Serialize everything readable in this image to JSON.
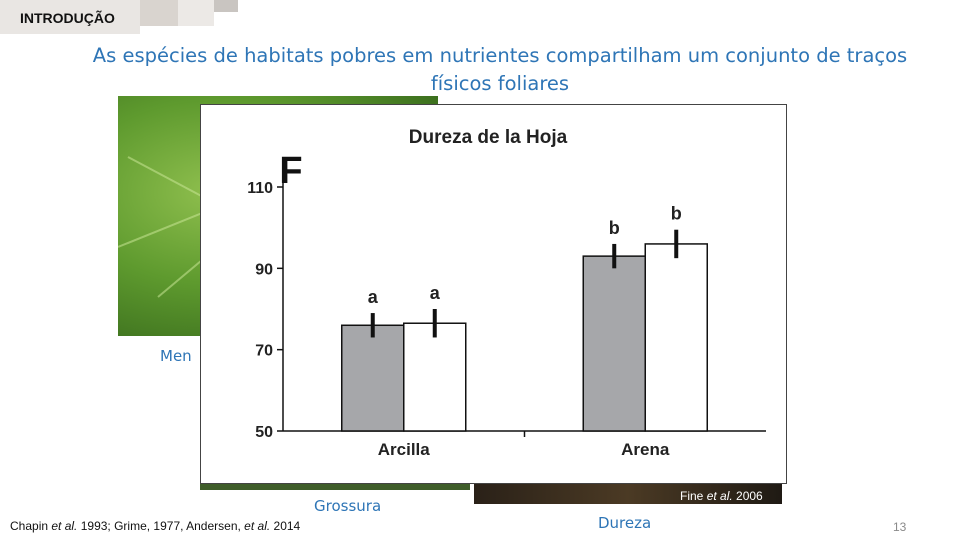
{
  "header": {
    "section_tag": "INTRODUÇÃO"
  },
  "slide": {
    "title": "As espécies de habitats pobres em nutrientes compartilham um conjunto de traços físicos foliares",
    "labels": {
      "left": "Men",
      "middle": "Grossura",
      "right": "Dureza"
    },
    "photo_credit": {
      "author": "Fine ",
      "etal": "et al.",
      "year": " 2006"
    },
    "citation": {
      "p1": "Chapin ",
      "i1": "et al.",
      "p2": " 1993; Grime, 1977, Andersen, ",
      "i2": "et al.",
      "p3": " 2014"
    },
    "page_number": "13"
  },
  "colors": {
    "title_blue": "#2e75b6",
    "bar_gray": "#a6a7aa",
    "bar_white": "#ffffff"
  },
  "chart_data": {
    "type": "bar",
    "title": "Dureza de la Hoja",
    "panel_letter": "F",
    "categories": [
      "Arcilla",
      "Arena"
    ],
    "series": [
      {
        "values": [
          76,
          93
        ],
        "errors": [
          3,
          3
        ],
        "letters": [
          "a",
          "b"
        ],
        "color": "#a6a7aa"
      },
      {
        "values": [
          76.5,
          96
        ],
        "errors": [
          3.5,
          3.5
        ],
        "letters": [
          "a",
          "b"
        ],
        "color": "#ffffff"
      }
    ],
    "yticks": [
      50,
      70,
      90,
      110
    ],
    "ylim": [
      50,
      110
    ],
    "grid": false,
    "legend": "none"
  }
}
